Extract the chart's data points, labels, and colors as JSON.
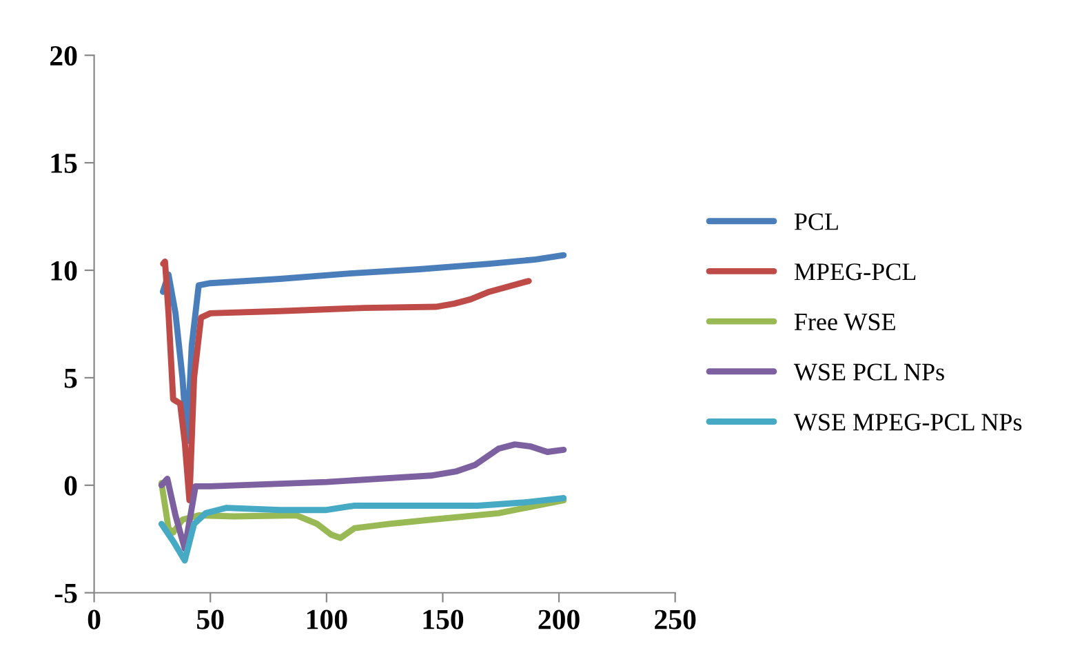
{
  "chart_data": {
    "type": "line",
    "xlim": [
      0,
      250
    ],
    "xticks": [
      0,
      50,
      100,
      150,
      200,
      250
    ],
    "ylim": [
      -5,
      20
    ],
    "yticks": [
      -5,
      0,
      5,
      10,
      15,
      20
    ],
    "grid": false,
    "legend": "right",
    "marker": "none",
    "line_style": "solid",
    "series": [
      {
        "name": "PCL",
        "color": "#4a7ebb",
        "x": [
          29.6,
          32,
          35,
          38,
          40,
          42,
          45,
          50,
          80,
          110,
          140,
          170,
          190,
          202
        ],
        "values": [
          9.0,
          9.8,
          8.0,
          5.0,
          2.05,
          6.5,
          9.3,
          9.4,
          9.6,
          9.85,
          10.05,
          10.3,
          10.5,
          10.7
        ]
      },
      {
        "name": "MPEG-PCL",
        "color": "#be4b48",
        "x": [
          29.7,
          30.5,
          32,
          34,
          37,
          39,
          41,
          43,
          46,
          50,
          80,
          116,
          147,
          155,
          162,
          170,
          187
        ],
        "values": [
          10.3,
          10.4,
          8.0,
          4.0,
          3.8,
          2.0,
          -0.7,
          5.0,
          7.8,
          8.0,
          8.1,
          8.25,
          8.3,
          8.45,
          8.65,
          9.0,
          9.5
        ]
      },
      {
        "name": "Free WSE",
        "color": "#98b954",
        "x": [
          29,
          32,
          34,
          38,
          45,
          60,
          87,
          96,
          102,
          106,
          112,
          127,
          145,
          174,
          202
        ],
        "values": [
          0.1,
          -2.0,
          -2.2,
          -1.6,
          -1.4,
          -1.45,
          -1.4,
          -1.8,
          -2.3,
          -2.45,
          -2.0,
          -1.8,
          -1.6,
          -1.3,
          -0.7
        ]
      },
      {
        "name": "WSE PCL NPs",
        "color": "#7d60a0",
        "x": [
          29,
          31.5,
          35,
          39,
          43.6,
          50,
          100,
          145,
          156,
          164,
          174,
          181,
          188,
          195,
          202
        ],
        "values": [
          0.0,
          0.3,
          -1.4,
          -2.95,
          -0.05,
          -0.05,
          0.15,
          0.45,
          0.65,
          0.95,
          1.7,
          1.9,
          1.8,
          1.55,
          1.65
        ]
      },
      {
        "name": "WSE MPEG-PCL NPs",
        "color": "#46aac5",
        "x": [
          29,
          34,
          39,
          43,
          48,
          57,
          80,
          100,
          112,
          140,
          165,
          185,
          202
        ],
        "values": [
          -1.8,
          -2.6,
          -3.5,
          -1.8,
          -1.3,
          -1.05,
          -1.15,
          -1.15,
          -0.95,
          -0.95,
          -0.95,
          -0.8,
          -0.6
        ]
      }
    ]
  }
}
